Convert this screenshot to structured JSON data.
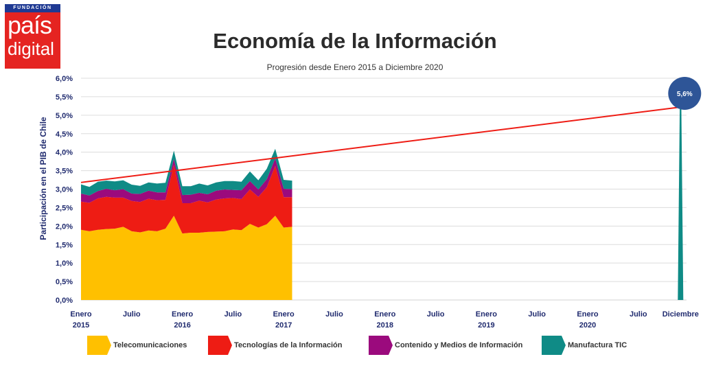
{
  "logo": {
    "top": "FUNDACIÓN",
    "line1": "país",
    "line2": "digital"
  },
  "chart_data": {
    "type": "area",
    "stacked": true,
    "title": "Economía de la Información",
    "subtitle": "Progresión desde Enero 2015 a Diciembre 2020",
    "ylabel": "Participación en el PIB de Chile",
    "xlabel": "",
    "ylim": [
      0,
      6.0
    ],
    "yticks": [
      "0,0%",
      "0,5%",
      "1,0%",
      "1,5%",
      "2,0%",
      "2,5%",
      "3,0%",
      "3,5%",
      "4,0%",
      "4,5%",
      "5,0%",
      "5,5%",
      "6,0%"
    ],
    "xticks": [
      {
        "month": 0,
        "line1": "Enero",
        "line2": "2015"
      },
      {
        "month": 6,
        "line1": "Julio",
        "line2": ""
      },
      {
        "month": 12,
        "line1": "Enero",
        "line2": "2016"
      },
      {
        "month": 18,
        "line1": "Julio",
        "line2": ""
      },
      {
        "month": 24,
        "line1": "Enero",
        "line2": "2017"
      },
      {
        "month": 30,
        "line1": "Julio",
        "line2": ""
      },
      {
        "month": 36,
        "line1": "Enero",
        "line2": "2018"
      },
      {
        "month": 42,
        "line1": "Julio",
        "line2": ""
      },
      {
        "month": 48,
        "line1": "Enero",
        "line2": "2019"
      },
      {
        "month": 54,
        "line1": "Julio",
        "line2": ""
      },
      {
        "month": 60,
        "line1": "Enero",
        "line2": "2020"
      },
      {
        "month": 66,
        "line1": "Julio",
        "line2": ""
      },
      {
        "month": 71,
        "line1": "Diciembre",
        "line2": ""
      }
    ],
    "grid": true,
    "legend_position": "bottom",
    "months": [
      0,
      1,
      2,
      3,
      4,
      5,
      6,
      7,
      8,
      9,
      10,
      11,
      12,
      13,
      14,
      15,
      16,
      17,
      18,
      19,
      20,
      21,
      22,
      23,
      24,
      25
    ],
    "series": [
      {
        "name": "Telecomunicaciones",
        "color": "#ffc000",
        "values": [
          1.9,
          1.86,
          1.9,
          1.92,
          1.93,
          1.98,
          1.86,
          1.83,
          1.88,
          1.86,
          1.93,
          2.28,
          1.8,
          1.82,
          1.82,
          1.84,
          1.85,
          1.86,
          1.91,
          1.89,
          2.06,
          1.96,
          2.05,
          2.28,
          1.96,
          1.98
        ]
      },
      {
        "name": "Tecnologías de la Información",
        "color": "#ee1c14",
        "values": [
          0.76,
          0.77,
          0.85,
          0.87,
          0.84,
          0.79,
          0.82,
          0.82,
          0.86,
          0.84,
          0.78,
          1.38,
          0.82,
          0.8,
          0.87,
          0.8,
          0.87,
          0.89,
          0.85,
          0.84,
          0.93,
          0.83,
          1.0,
          1.35,
          0.82,
          0.8
        ]
      },
      {
        "name": "Contenido y Medios de Información",
        "color": "#9b0a7d",
        "values": [
          0.22,
          0.2,
          0.2,
          0.22,
          0.2,
          0.23,
          0.2,
          0.22,
          0.22,
          0.21,
          0.2,
          0.16,
          0.22,
          0.23,
          0.21,
          0.22,
          0.24,
          0.24,
          0.22,
          0.24,
          0.23,
          0.2,
          0.22,
          0.2,
          0.23,
          0.22
        ]
      },
      {
        "name": "Manufactura TIC",
        "color": "#0f8b86",
        "values": [
          0.25,
          0.23,
          0.25,
          0.22,
          0.24,
          0.24,
          0.24,
          0.22,
          0.22,
          0.24,
          0.26,
          0.22,
          0.24,
          0.23,
          0.25,
          0.24,
          0.22,
          0.23,
          0.24,
          0.23,
          0.26,
          0.25,
          0.28,
          0.26,
          0.24,
          0.23
        ]
      }
    ],
    "spike": {
      "series": "Manufactura TIC",
      "month": 71,
      "value": 5.6,
      "label": "5,6%",
      "color": "#0f8b86"
    },
    "trendline": {
      "color": "#ee1c14",
      "start_month": 0,
      "start_value": 3.18,
      "end_month": 71,
      "end_value": 5.22
    },
    "bubble": {
      "label": "5,6%",
      "color": "#2e5597"
    }
  }
}
